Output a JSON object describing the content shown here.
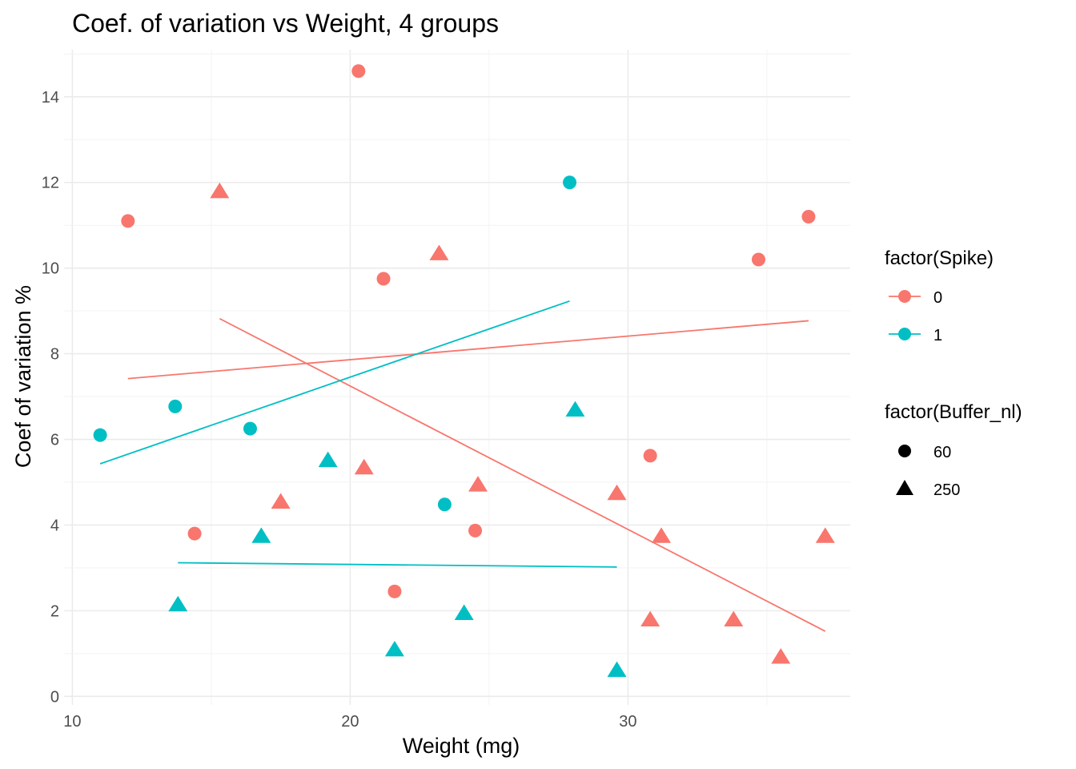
{
  "chart_data": {
    "type": "scatter",
    "title": "Coef. of variation vs Weight, 4 groups",
    "xlabel": "Weight (mg)",
    "ylabel": "Coef of variation %",
    "xlim": [
      9.7,
      38
    ],
    "ylim": [
      -0.2,
      15.1
    ],
    "x_ticks": [
      10,
      20,
      30
    ],
    "y_ticks": [
      0,
      2,
      4,
      6,
      8,
      10,
      12,
      14
    ],
    "x_tick_labels": [
      "10",
      "20",
      "30"
    ],
    "y_tick_labels": [
      "0",
      "2",
      "4",
      "6",
      "8",
      "10",
      "12",
      "14"
    ],
    "grid": true,
    "legend_position": "right",
    "legends": [
      {
        "title": "factor(Spike)",
        "type": "color",
        "entries": [
          {
            "label": "0",
            "color": "#F8766D"
          },
          {
            "label": "1",
            "color": "#00BFC4"
          }
        ]
      },
      {
        "title": "factor(Buffer_nl)",
        "type": "shape",
        "entries": [
          {
            "label": "60",
            "shape": "circle"
          },
          {
            "label": "250",
            "shape": "triangle"
          }
        ]
      }
    ],
    "points": [
      {
        "x": 12.0,
        "y": 11.1,
        "spike": "0",
        "buffer": "60"
      },
      {
        "x": 14.4,
        "y": 3.8,
        "spike": "0",
        "buffer": "60"
      },
      {
        "x": 20.3,
        "y": 14.6,
        "spike": "0",
        "buffer": "60"
      },
      {
        "x": 21.2,
        "y": 9.75,
        "spike": "0",
        "buffer": "60"
      },
      {
        "x": 21.6,
        "y": 2.45,
        "spike": "0",
        "buffer": "60"
      },
      {
        "x": 24.5,
        "y": 3.87,
        "spike": "0",
        "buffer": "60"
      },
      {
        "x": 30.8,
        "y": 5.62,
        "spike": "0",
        "buffer": "60"
      },
      {
        "x": 34.7,
        "y": 10.2,
        "spike": "0",
        "buffer": "60"
      },
      {
        "x": 36.5,
        "y": 11.2,
        "spike": "0",
        "buffer": "60"
      },
      {
        "x": 15.3,
        "y": 11.8,
        "spike": "0",
        "buffer": "250"
      },
      {
        "x": 17.5,
        "y": 4.55,
        "spike": "0",
        "buffer": "250"
      },
      {
        "x": 20.5,
        "y": 5.35,
        "spike": "0",
        "buffer": "250"
      },
      {
        "x": 23.2,
        "y": 10.35,
        "spike": "0",
        "buffer": "250"
      },
      {
        "x": 24.6,
        "y": 4.95,
        "spike": "0",
        "buffer": "250"
      },
      {
        "x": 29.6,
        "y": 4.75,
        "spike": "0",
        "buffer": "250"
      },
      {
        "x": 30.8,
        "y": 1.8,
        "spike": "0",
        "buffer": "250"
      },
      {
        "x": 31.2,
        "y": 3.75,
        "spike": "0",
        "buffer": "250"
      },
      {
        "x": 33.8,
        "y": 1.8,
        "spike": "0",
        "buffer": "250"
      },
      {
        "x": 35.5,
        "y": 0.93,
        "spike": "0",
        "buffer": "250"
      },
      {
        "x": 37.1,
        "y": 3.75,
        "spike": "0",
        "buffer": "250"
      },
      {
        "x": 11.0,
        "y": 6.1,
        "spike": "1",
        "buffer": "60"
      },
      {
        "x": 13.7,
        "y": 6.77,
        "spike": "1",
        "buffer": "60"
      },
      {
        "x": 16.4,
        "y": 6.25,
        "spike": "1",
        "buffer": "60"
      },
      {
        "x": 23.4,
        "y": 4.48,
        "spike": "1",
        "buffer": "60"
      },
      {
        "x": 27.9,
        "y": 12.0,
        "spike": "1",
        "buffer": "60"
      },
      {
        "x": 13.8,
        "y": 2.15,
        "spike": "1",
        "buffer": "250"
      },
      {
        "x": 16.8,
        "y": 3.75,
        "spike": "1",
        "buffer": "250"
      },
      {
        "x": 19.2,
        "y": 5.52,
        "spike": "1",
        "buffer": "250"
      },
      {
        "x": 21.6,
        "y": 1.1,
        "spike": "1",
        "buffer": "250"
      },
      {
        "x": 24.1,
        "y": 1.95,
        "spike": "1",
        "buffer": "250"
      },
      {
        "x": 28.1,
        "y": 6.7,
        "spike": "1",
        "buffer": "250"
      },
      {
        "x": 29.6,
        "y": 0.62,
        "spike": "1",
        "buffer": "250"
      }
    ],
    "fit_lines": [
      {
        "spike": "0",
        "buffer": "60",
        "x": [
          12.0,
          36.5
        ],
        "y": [
          7.42,
          8.77
        ]
      },
      {
        "spike": "0",
        "buffer": "250",
        "x": [
          15.3,
          37.1
        ],
        "y": [
          8.82,
          1.52
        ]
      },
      {
        "spike": "1",
        "buffer": "60",
        "x": [
          11.0,
          27.9
        ],
        "y": [
          5.43,
          9.23
        ]
      },
      {
        "spike": "1",
        "buffer": "250",
        "x": [
          13.8,
          29.6
        ],
        "y": [
          3.12,
          3.02
        ]
      }
    ]
  }
}
